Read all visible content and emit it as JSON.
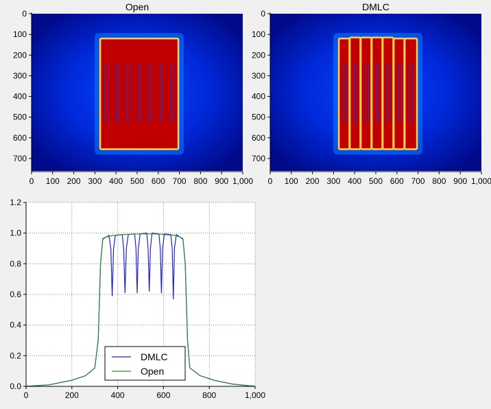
{
  "chart_data": [
    {
      "type": "heatmap",
      "title": "Open",
      "xlabel": "",
      "ylabel": "",
      "xlim": [
        0,
        1000
      ],
      "ylim": [
        0,
        760
      ],
      "y_inverted": true,
      "x_ticks": [
        "0",
        "100",
        "200",
        "300",
        "400",
        "500",
        "600",
        "700",
        "800",
        "900",
        "1,000"
      ],
      "y_ticks": [
        "0",
        "100",
        "200",
        "300",
        "400",
        "500",
        "600",
        "700"
      ],
      "field": {
        "x": [
          325,
          695
        ],
        "y": [
          120,
          655
        ]
      },
      "field_color": "#c00000",
      "field_edge_color": "#ffd24a",
      "background_gradient": [
        "#0036ff",
        "#000088"
      ],
      "overlay_boxes": [
        {
          "x": [
            348,
            362
          ],
          "y": [
            250,
            520
          ]
        },
        {
          "x": [
            400,
            414
          ],
          "y": [
            250,
            520
          ]
        },
        {
          "x": [
            452,
            466
          ],
          "y": [
            250,
            520
          ]
        },
        {
          "x": [
            504,
            518
          ],
          "y": [
            250,
            520
          ]
        },
        {
          "x": [
            556,
            570
          ],
          "y": [
            250,
            520
          ]
        },
        {
          "x": [
            608,
            622
          ],
          "y": [
            250,
            520
          ]
        },
        {
          "x": [
            660,
            674
          ],
          "y": [
            250,
            520
          ]
        }
      ]
    },
    {
      "type": "heatmap",
      "title": "DMLC",
      "xlabel": "",
      "ylabel": "",
      "xlim": [
        0,
        1000
      ],
      "ylim": [
        0,
        760
      ],
      "y_inverted": true,
      "x_ticks": [
        "0",
        "100",
        "200",
        "300",
        "400",
        "500",
        "600",
        "700",
        "800",
        "900",
        "1,000"
      ],
      "y_ticks": [
        "0",
        "100",
        "200",
        "300",
        "400",
        "500",
        "600",
        "700"
      ],
      "field": {
        "x": [
          325,
          695
        ],
        "y": [
          120,
          655
        ]
      },
      "field_color": "#c00000",
      "field_edge_color": "#ffd24a",
      "background_gradient": [
        "#0036ff",
        "#000088"
      ],
      "segments": [
        {
          "x": [
            325,
            375
          ],
          "y": [
            120,
            655
          ]
        },
        {
          "x": [
            377,
            427
          ],
          "y": [
            115,
            655
          ]
        },
        {
          "x": [
            429,
            479
          ],
          "y": [
            115,
            655
          ]
        },
        {
          "x": [
            481,
            531
          ],
          "y": [
            115,
            655
          ]
        },
        {
          "x": [
            533,
            583
          ],
          "y": [
            115,
            655
          ]
        },
        {
          "x": [
            585,
            635
          ],
          "y": [
            120,
            655
          ]
        },
        {
          "x": [
            637,
            695
          ],
          "y": [
            120,
            655
          ]
        }
      ],
      "overlay_boxes": [
        {
          "x": [
            348,
            362
          ],
          "y": [
            250,
            520
          ]
        },
        {
          "x": [
            400,
            414
          ],
          "y": [
            250,
            520
          ]
        },
        {
          "x": [
            452,
            466
          ],
          "y": [
            250,
            520
          ]
        },
        {
          "x": [
            504,
            518
          ],
          "y": [
            250,
            520
          ]
        },
        {
          "x": [
            556,
            570
          ],
          "y": [
            250,
            520
          ]
        },
        {
          "x": [
            608,
            622
          ],
          "y": [
            250,
            520
          ]
        },
        {
          "x": [
            660,
            674
          ],
          "y": [
            250,
            520
          ]
        }
      ]
    },
    {
      "type": "line",
      "title": "",
      "xlabel": "",
      "ylabel": "",
      "xlim": [
        0,
        1000
      ],
      "ylim": [
        0,
        1.2
      ],
      "x_ticks": [
        "0",
        "200",
        "400",
        "600",
        "800",
        "1,000"
      ],
      "y_ticks": [
        "0.0",
        "0.2",
        "0.4",
        "0.6",
        "0.8",
        "1.0",
        "1.2"
      ],
      "grid": true,
      "legend": "bottom-center",
      "series": [
        {
          "name": "DMLC",
          "color": "#1f1fcf",
          "points": [
            [
              0,
              0.0
            ],
            [
              100,
              0.01
            ],
            [
              200,
              0.04
            ],
            [
              260,
              0.07
            ],
            [
              300,
              0.12
            ],
            [
              315,
              0.3
            ],
            [
              325,
              0.8
            ],
            [
              335,
              0.96
            ],
            [
              350,
              0.975
            ],
            [
              362,
              0.985
            ],
            [
              370,
              0.9
            ],
            [
              376,
              0.59
            ],
            [
              382,
              0.9
            ],
            [
              390,
              0.985
            ],
            [
              420,
              0.99
            ],
            [
              426,
              0.9
            ],
            [
              432,
              0.61
            ],
            [
              438,
              0.9
            ],
            [
              446,
              0.99
            ],
            [
              474,
              0.995
            ],
            [
              480,
              0.9
            ],
            [
              485,
              0.61
            ],
            [
              490,
              0.9
            ],
            [
              498,
              0.995
            ],
            [
              527,
              1.0
            ],
            [
              533,
              0.9
            ],
            [
              538,
              0.62
            ],
            [
              543,
              0.9
            ],
            [
              550,
              1.0
            ],
            [
              580,
              0.995
            ],
            [
              586,
              0.9
            ],
            [
              591,
              0.61
            ],
            [
              596,
              0.9
            ],
            [
              604,
              0.995
            ],
            [
              632,
              0.99
            ],
            [
              638,
              0.9
            ],
            [
              643,
              0.57
            ],
            [
              648,
              0.9
            ],
            [
              656,
              0.99
            ],
            [
              672,
              0.975
            ],
            [
              685,
              0.96
            ],
            [
              695,
              0.8
            ],
            [
              705,
              0.3
            ],
            [
              715,
              0.12
            ],
            [
              760,
              0.07
            ],
            [
              820,
              0.04
            ],
            [
              900,
              0.015
            ],
            [
              1000,
              0.0
            ]
          ]
        },
        {
          "name": "Open",
          "color": "#2e8b2e",
          "points": [
            [
              0,
              0.0
            ],
            [
              100,
              0.01
            ],
            [
              200,
              0.04
            ],
            [
              260,
              0.07
            ],
            [
              300,
              0.12
            ],
            [
              315,
              0.3
            ],
            [
              325,
              0.8
            ],
            [
              335,
              0.965
            ],
            [
              350,
              0.975
            ],
            [
              380,
              0.985
            ],
            [
              420,
              0.99
            ],
            [
              470,
              0.993
            ],
            [
              510,
              0.995
            ],
            [
              560,
              0.995
            ],
            [
              610,
              0.99
            ],
            [
              650,
              0.985
            ],
            [
              672,
              0.975
            ],
            [
              685,
              0.965
            ],
            [
              695,
              0.8
            ],
            [
              705,
              0.3
            ],
            [
              715,
              0.12
            ],
            [
              760,
              0.07
            ],
            [
              820,
              0.04
            ],
            [
              900,
              0.015
            ],
            [
              1000,
              0.0
            ]
          ]
        }
      ]
    }
  ]
}
